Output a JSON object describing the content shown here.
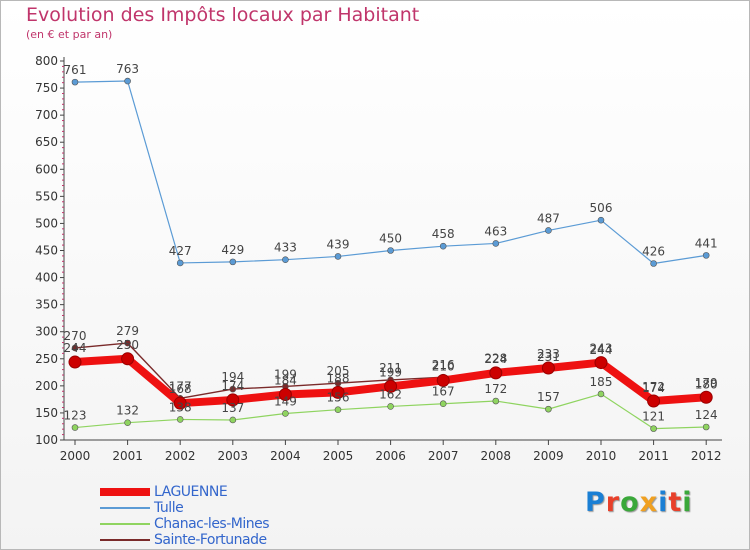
{
  "title": "Evolution des Impôts locaux par Habitant",
  "subtitle": "(en € et par an)",
  "logo": {
    "text": "Proxiti",
    "letter_colors": [
      "#1a7fd4",
      "#e8402a",
      "#3aa83a",
      "#f0a020",
      "#1a7fd4",
      "#e8402a",
      "#3aa83a"
    ]
  },
  "chart_data": {
    "type": "line",
    "x": [
      "2000",
      "2001",
      "2002",
      "2003",
      "2004",
      "2005",
      "2006",
      "2007",
      "2008",
      "2009",
      "2010",
      "2011",
      "2012"
    ],
    "ylim": [
      100,
      800
    ],
    "yticks": [
      "100",
      "150",
      "200",
      "250",
      "300",
      "350",
      "400",
      "450",
      "500",
      "550",
      "600",
      "650",
      "700",
      "750",
      "800"
    ],
    "grid": false,
    "legend_position": "bottom-left",
    "series": [
      {
        "name": "LAGUENNE",
        "color": "#ee1111",
        "values": [
          244,
          250,
          168,
          174,
          184,
          188,
          199,
          210,
          224,
          233,
          243,
          172,
          179
        ]
      },
      {
        "name": "Tulle",
        "color": "#5b9bd5",
        "values": [
          761,
          763,
          427,
          429,
          433,
          439,
          450,
          458,
          463,
          487,
          506,
          426,
          441
        ]
      },
      {
        "name": "Chanac-les-Mines",
        "color": "#8fd460",
        "values": [
          123,
          132,
          138,
          137,
          149,
          156,
          162,
          167,
          172,
          157,
          185,
          121,
          124
        ]
      },
      {
        "name": "Sainte-Fortunade",
        "color": "#7a2a2a",
        "values": [
          270,
          279,
          177,
          194,
          199,
          205,
          211,
          216,
          228,
          231,
          244,
          174,
          180
        ]
      }
    ]
  }
}
